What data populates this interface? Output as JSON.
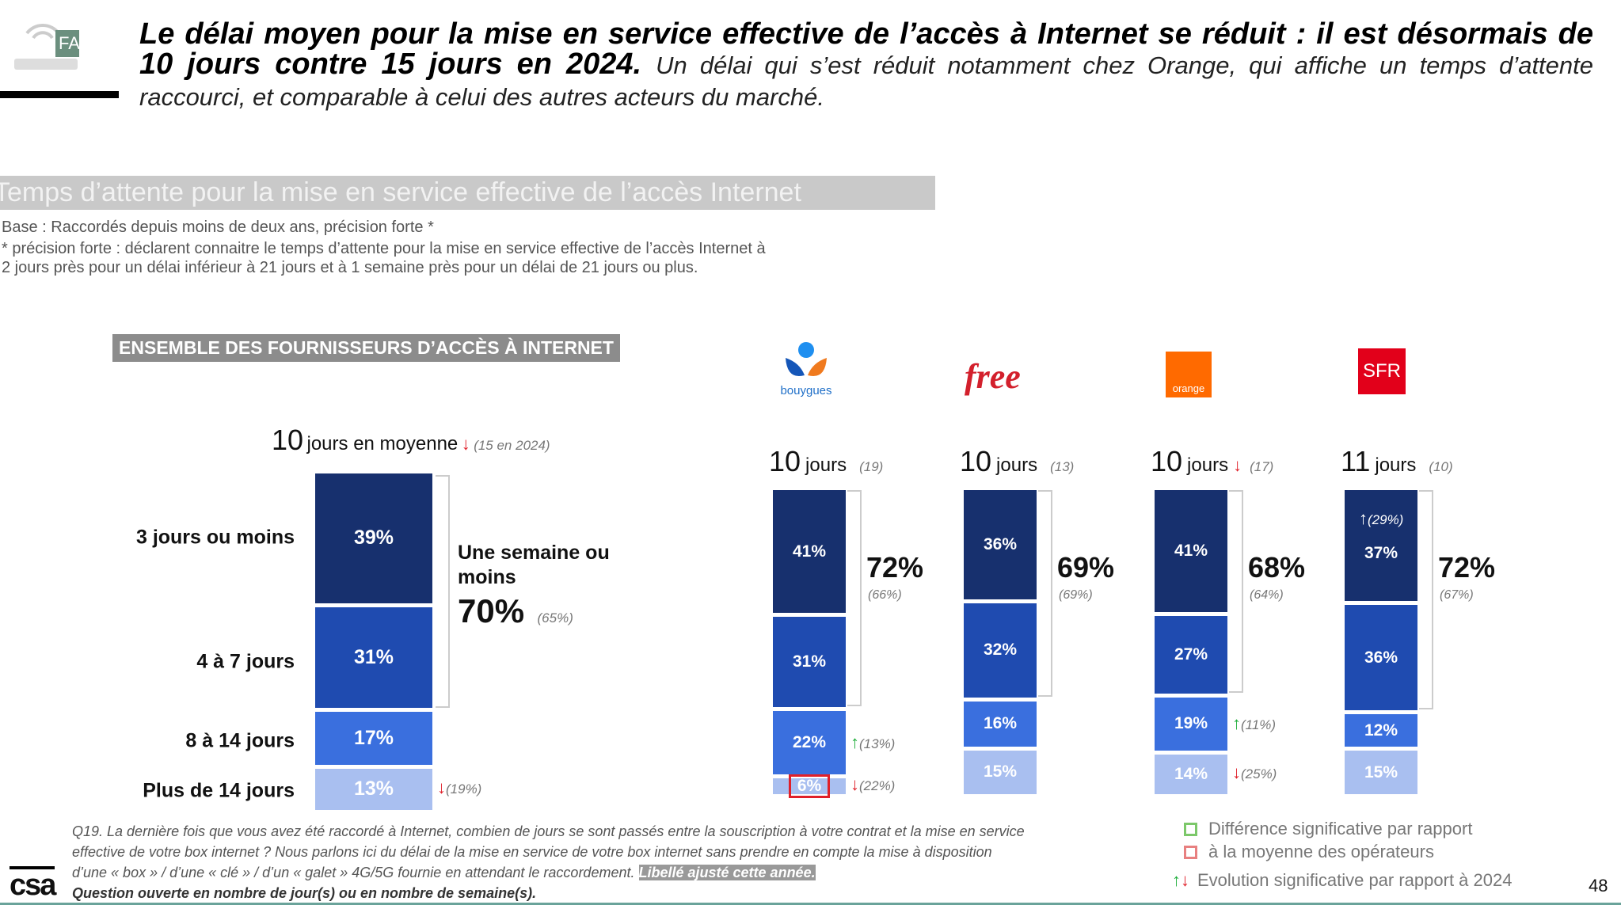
{
  "header": {
    "logo_text": "FAI",
    "title_bold": "Le délai moyen pour la mise en service effective de l’accès à Internet se réduit : il est désormais de 10 jours contre 15 jours en 2024.",
    "title_rest": "Un délai qui s’est réduit notamment chez Orange, qui affiche un temps d’attente raccourci, et comparable à celui des autres acteurs du marché."
  },
  "section": {
    "title": "Temps d’attente pour la mise en service effective de l’accès Internet",
    "base": "Base : Raccordés depuis moins de deux ans, précision forte *",
    "note_1": "* précision forte : déclarent connaitre le temps d’attente pour la mise en service effective de l’accès Internet à",
    "note_2": "2 jours près pour un délai inférieur à 21 jours et à 1 semaine près pour un délai de 21 jours ou plus."
  },
  "overall": {
    "header": "ENSEMBLE DES FOURNISSEURS D’ACCÈS À INTERNET",
    "days": "10",
    "days_label": "jours en moyenne",
    "trend": "down",
    "prev": "(15 en 2024)",
    "bracket_label": "Une semaine ou moins",
    "bracket_pct": "70%",
    "bracket_prev": "(65%)",
    "rows": [
      "3 jours ou moins",
      "4 à 7 jours",
      "8 à 14 jours",
      "Plus de 14 jours"
    ],
    "segments": [
      {
        "value": 39
      },
      {
        "value": 31
      },
      {
        "value": 17
      },
      {
        "value": 13,
        "trend": "down",
        "prev": "(19%)"
      }
    ]
  },
  "operators": [
    {
      "name": "bouygues",
      "logo_text": "bouygues",
      "days": "10",
      "days_label": "jours",
      "prev": "(19)",
      "bracket_pct": "72%",
      "bracket_prev": "(66%)",
      "segments": [
        {
          "value": 41
        },
        {
          "value": 31
        },
        {
          "value": 22,
          "trend": "up",
          "prev": "(13%)"
        },
        {
          "value": 6,
          "trend": "down",
          "prev": "(22%)",
          "highlight": "#e0202a"
        }
      ]
    },
    {
      "name": "free",
      "logo_text": "free",
      "days": "10",
      "days_label": "jours",
      "prev": "(13)",
      "bracket_pct": "69%",
      "bracket_prev": "(69%)",
      "segments": [
        {
          "value": 36
        },
        {
          "value": 32
        },
        {
          "value": 16
        },
        {
          "value": 15
        }
      ]
    },
    {
      "name": "orange",
      "logo_text": "orange",
      "days": "10",
      "days_label": "jours",
      "trend": "down",
      "prev": "(17)",
      "bracket_pct": "68%",
      "bracket_prev": "(64%)",
      "segments": [
        {
          "value": 41
        },
        {
          "value": 27
        },
        {
          "value": 19,
          "trend": "up",
          "prev": "(11%)"
        },
        {
          "value": 14,
          "trend": "down",
          "prev": "(25%)"
        }
      ]
    },
    {
      "name": "sfr",
      "logo_text": "SFR",
      "days": "11",
      "days_label": "jours",
      "prev": "(10)",
      "bracket_pct": "72%",
      "bracket_prev": "(67%)",
      "segments": [
        {
          "value": 37,
          "trend": "up",
          "prev": "(29%)",
          "inside": true
        },
        {
          "value": 36
        },
        {
          "value": 12
        },
        {
          "value": 15
        }
      ]
    }
  ],
  "colors": {
    "seg": [
      "#17306e",
      "#1f4bb0",
      "#3a6fde",
      "#a9bff0"
    ],
    "up": "#1fae3a",
    "down": "#e0202a"
  },
  "footer": {
    "q1": "Q19. La dernière fois que vous avez été raccordé à Internet, combien de jours se sont passés entre la souscription à votre contrat et la mise en service",
    "q2": "effective de votre box internet ? Nous parlons ici du délai de la mise en service de votre box internet sans prendre en compte la mise à disposition",
    "q3": "d’une « box » / d’une « clé » / d’un « galet » 4G/5G fournie en attendant le raccordement.",
    "q3_highlight": "Libellé ajusté cette année.",
    "q4": "Question ouverte en nombre de jour(s) ou en nombre de semaine(s).",
    "logo": "csa",
    "page": "48"
  },
  "legend": {
    "line1": "Différence significative par rapport",
    "line2": "à la moyenne des opérateurs",
    "line3": "Evolution significative par rapport à 2024"
  }
}
